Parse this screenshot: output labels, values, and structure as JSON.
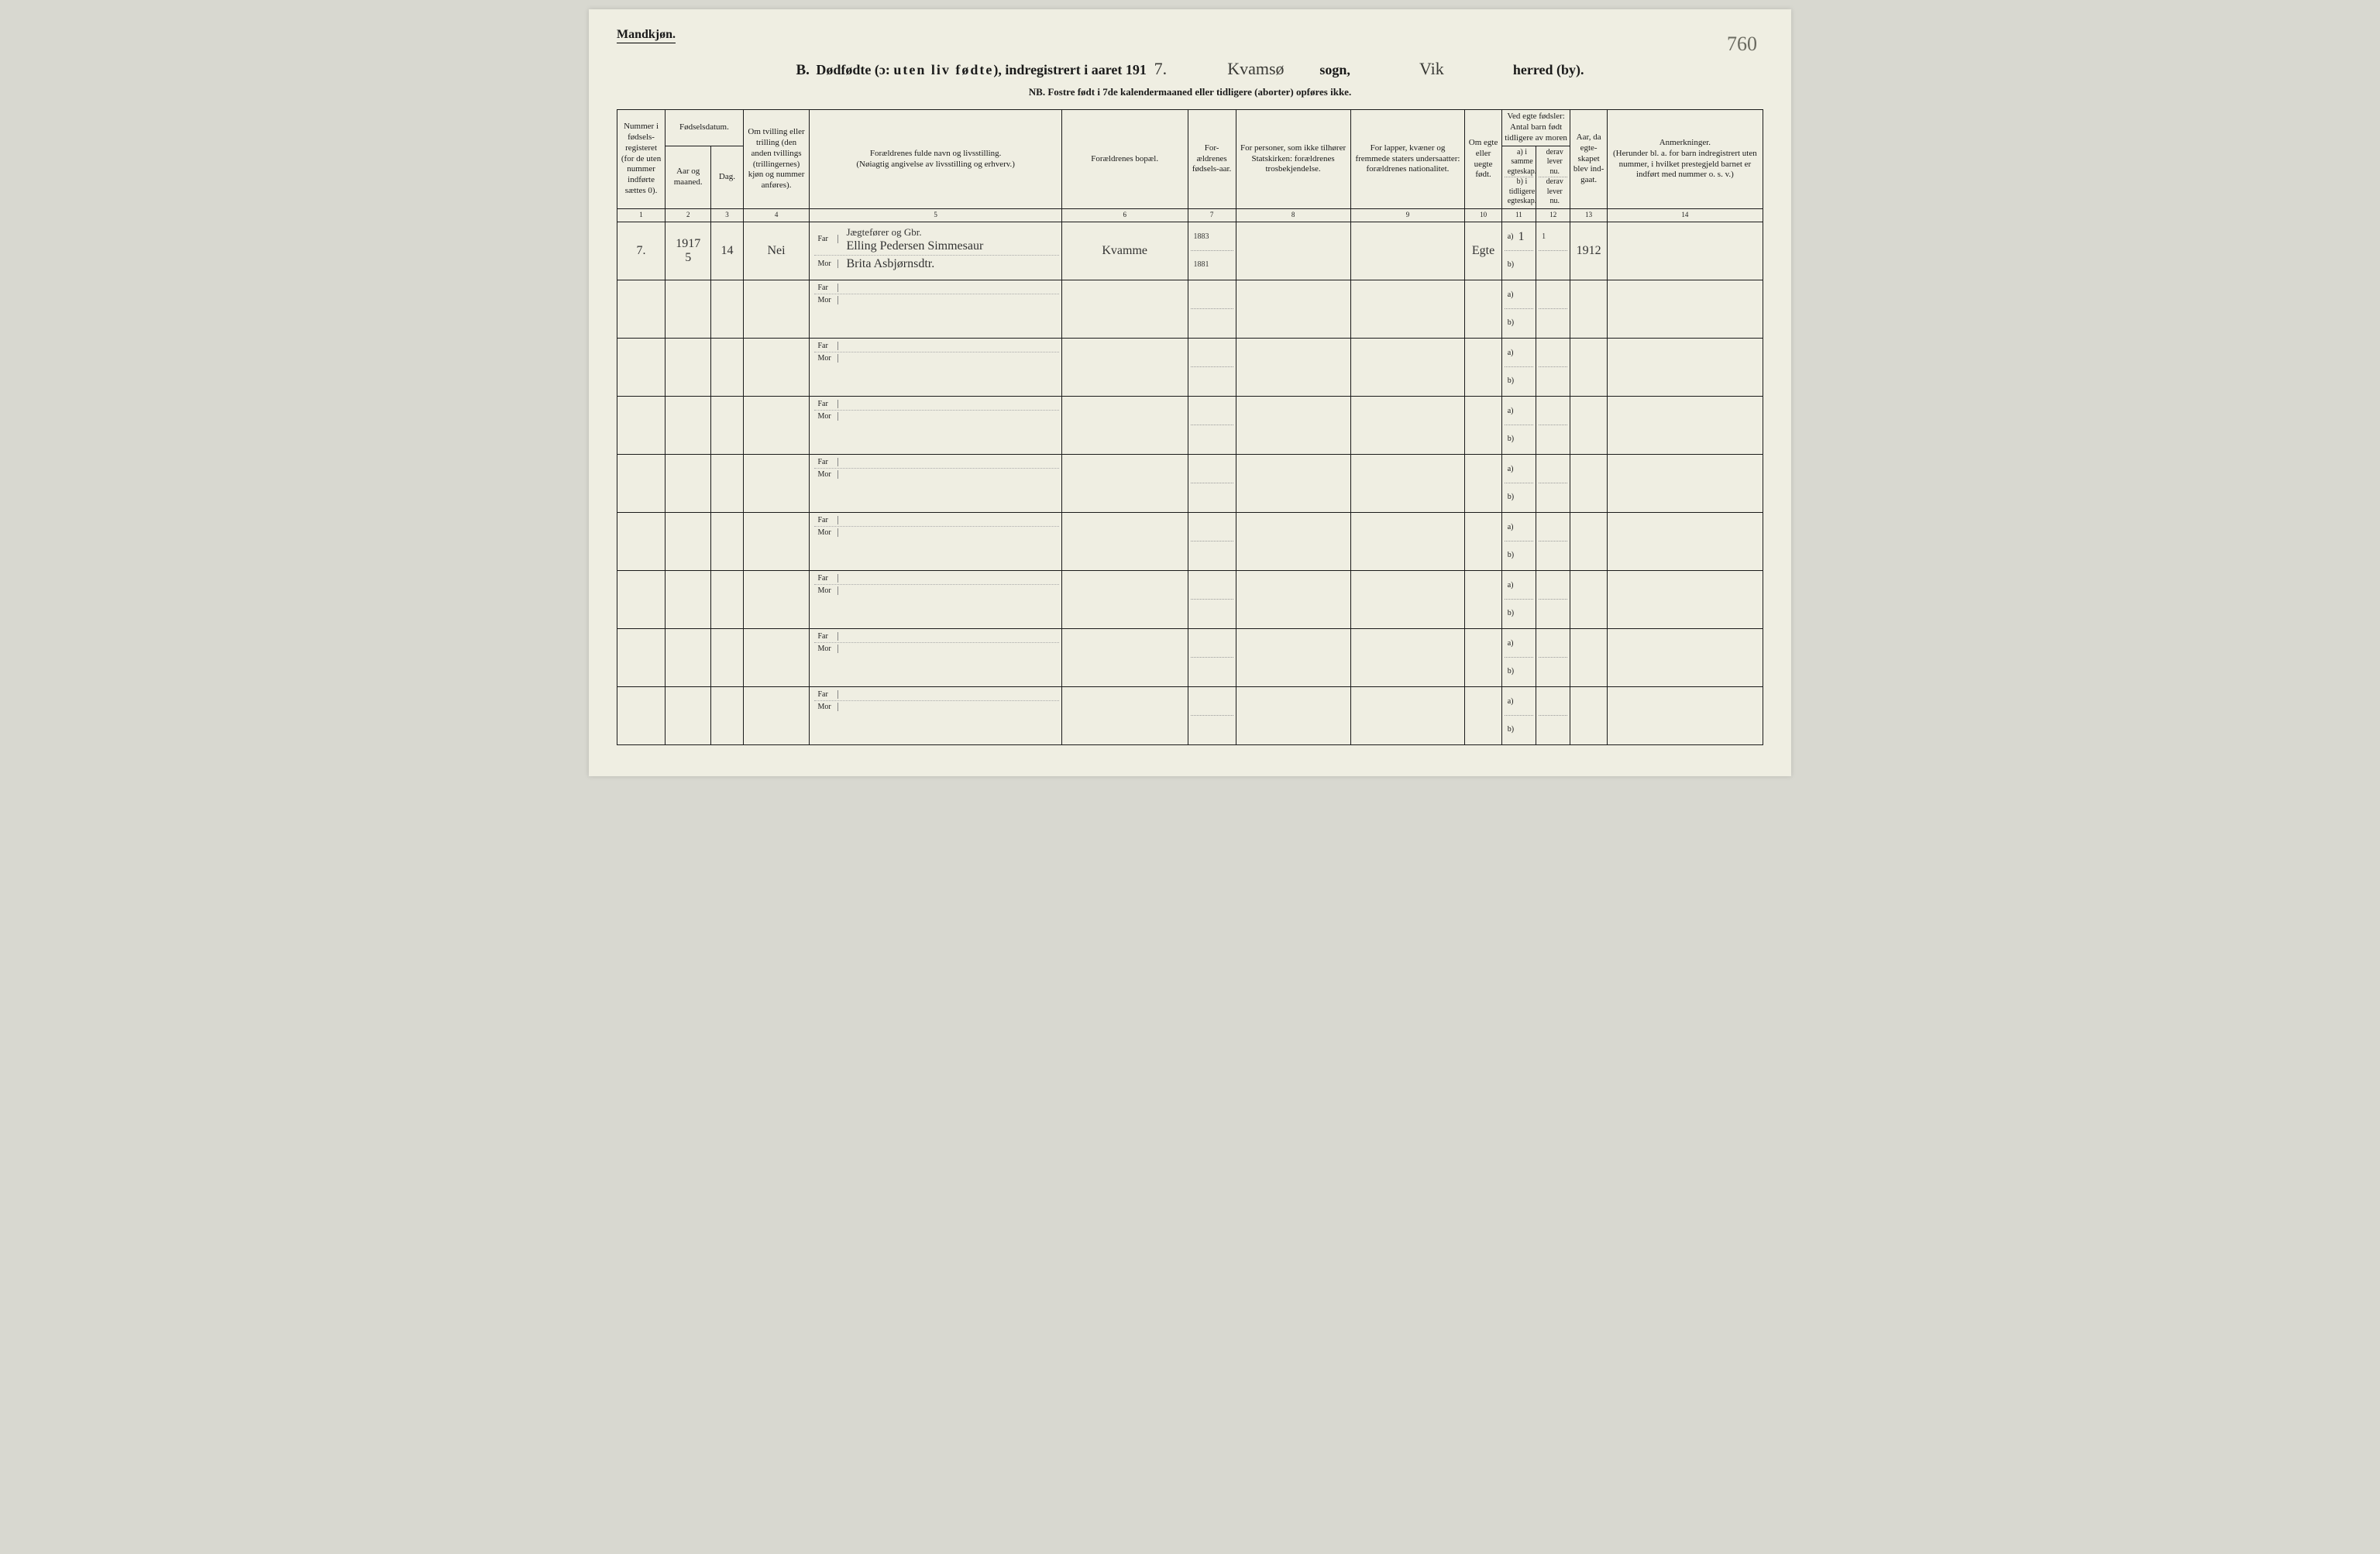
{
  "page": {
    "gender_heading": "Mandkjøn.",
    "page_number_handwritten": "760",
    "title": {
      "prefix": "B.",
      "main_1": "Dødfødte (ɔ:",
      "main_spaced": "uten liv fødte",
      "main_2": "), indregistrert i aaret 191",
      "year_suffix_hand": "7.",
      "sogn_hand": "Kvamsø",
      "sogn_label": "sogn,",
      "herred_hand": "Vik",
      "herred_label": "herred (by)."
    },
    "nb_line": "NB.  Fostre født i 7de kalendermaaned eller tidligere (aborter) opføres ikke.",
    "headers": {
      "c1": "Nummer i fødsels-registeret (for de uten nummer indførte sættes 0).",
      "c2_group": "Fødselsdatum.",
      "c2a": "Aar og maaned.",
      "c2b": "Dag.",
      "c3": "Om tvilling eller trilling (den anden tvillings (trillingernes) kjøn og nummer anføres).",
      "c5": "Forældrenes fulde navn og livsstilling.\n(Nøiagtig angivelse av livsstilling og erhverv.)",
      "c6": "Forældrenes bopæl.",
      "c7": "For-ældrenes fødsels-aar.",
      "c8": "For personer, som ikke tilhører Statskirken: forældrenes trosbekjendelse.",
      "c9": "For lapper, kvæner og fremmede staters undersaatter: forældrenes nationalitet.",
      "c10": "Om egte eller uegte født.",
      "c11_group": "Ved egte fødsler: Antal barn født tidligere av moren",
      "c11a": "a) i samme egteskap.",
      "c11b": "b) i tidligere egteskap.",
      "c12a": "derav lever nu.",
      "c12b": "derav lever nu.",
      "c13": "Aar, da egte-skapet blev ind-gaat.",
      "c14": "Anmerkninger.\n(Herunder bl. a. for barn indregistrert uten nummer, i hvilket prestegjeld barnet er indført med nummer o. s. v.)",
      "colnums": [
        "1",
        "2",
        "3",
        "4",
        "5",
        "6",
        "7",
        "8",
        "9",
        "10",
        "11",
        "12",
        "13",
        "14"
      ]
    },
    "row_labels": {
      "far": "Far",
      "mor": "Mor",
      "a": "a)",
      "b": "b)"
    },
    "rows": [
      {
        "num": "7.",
        "year_month": "1917\n5",
        "day": "14",
        "twin": "Nei",
        "far_occ": "Jægtefører og Gbr.",
        "far_name": "Elling Pedersen Simmesaur",
        "mor_name": "Brita Asbjørnsdtr.",
        "bopel": "Kvamme",
        "far_birth": "1883",
        "mor_birth": "1881",
        "egte": "Egte",
        "a_same": "1",
        "a_live": "1",
        "marriage_year": "1912"
      },
      {},
      {},
      {},
      {},
      {},
      {},
      {},
      {}
    ],
    "style": {
      "page_bg": "#efeee2",
      "border_color": "#1a1a1a",
      "hand_color": "#3a3a36",
      "col_widths_pct": [
        4.2,
        4.0,
        2.8,
        5.8,
        22.0,
        11.0,
        4.2,
        10.0,
        10.0,
        3.2,
        3.0,
        3.0,
        3.2,
        13.6
      ]
    }
  }
}
